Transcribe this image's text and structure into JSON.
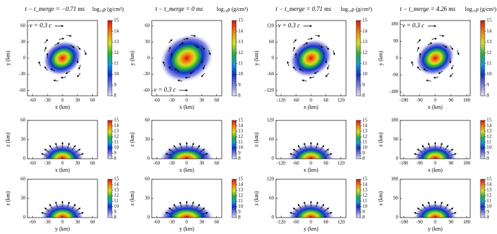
{
  "chart_data": [
    {
      "type": "heatmap",
      "title": "t − t_merge = −0.71 ms",
      "annotation": "v = 0.3 c",
      "xlabel": "x (km)",
      "ylabel": "y (km)",
      "xlim": [
        -70,
        70
      ],
      "ylim": [
        -70,
        70
      ],
      "xticks": [
        -60,
        -30,
        0,
        30,
        60
      ],
      "yticks": [
        -60,
        -30,
        0,
        30,
        60
      ],
      "colorbar": {
        "label": "log₁₀ρ (g/cm³)",
        "lim": [
          8,
          15
        ],
        "ticks": [
          8,
          9,
          10,
          11,
          12,
          13,
          14,
          15
        ]
      }
    },
    {
      "type": "heatmap",
      "title": "t − t_merge = 0 ms",
      "annotation": "v = 0.3 c",
      "xlabel": "x (km)",
      "ylabel": "y (km)",
      "xlim": [
        -70,
        70
      ],
      "ylim": [
        -70,
        70
      ],
      "xticks": [
        -60,
        -30,
        0,
        30,
        60
      ],
      "yticks": [
        -60,
        -30,
        0,
        30,
        60
      ],
      "colorbar": {
        "label": "log₁₀ρ (g/cm³)",
        "lim": [
          8,
          15
        ],
        "ticks": [
          8,
          9,
          10,
          11,
          12,
          13,
          14,
          15
        ]
      }
    },
    {
      "type": "heatmap",
      "title": "t − t_merge = 0.71 ms",
      "annotation": "v = 0.3 c",
      "xlabel": "x (km)",
      "ylabel": "y (km)",
      "xlim": [
        -140,
        140
      ],
      "ylim": [
        -140,
        140
      ],
      "xticks": [
        -120,
        -60,
        0,
        60,
        120
      ],
      "yticks": [
        -120,
        -60,
        0,
        60,
        120
      ],
      "colorbar": {
        "label": "log₁₀ρ (g/cm³)",
        "lim": [
          8,
          15
        ],
        "ticks": [
          8,
          9,
          10,
          11,
          12,
          13,
          14,
          15
        ]
      }
    },
    {
      "type": "heatmap",
      "title": "t − t_merge = 4.26 ms",
      "annotation": "v = 0.3 c",
      "xlabel": "x (km)",
      "ylabel": "y (km)",
      "xlim": [
        -200,
        200
      ],
      "ylim": [
        -200,
        200
      ],
      "xticks": [
        -180,
        -90,
        0,
        90,
        180
      ],
      "yticks": [
        -180,
        -90,
        0,
        90,
        180
      ],
      "colorbar": {
        "label": "log₁₀ρ (g/cm³)",
        "lim": [
          8,
          15
        ],
        "ticks": [
          8,
          9,
          10,
          11,
          12,
          13,
          14,
          15
        ]
      }
    },
    {
      "type": "heatmap",
      "xlabel": "x (km)",
      "ylabel": "z (km)",
      "xlim": [
        -70,
        70
      ],
      "ylim": [
        0,
        60
      ],
      "xticks": [
        -60,
        -30,
        0,
        30,
        60
      ],
      "yticks": [
        0,
        30,
        60
      ],
      "colorbar": {
        "lim": [
          8,
          15
        ],
        "ticks": [
          8,
          9,
          10,
          11,
          12,
          13,
          14,
          15
        ]
      }
    },
    {
      "type": "heatmap",
      "xlabel": "x (km)",
      "ylabel": "z (km)",
      "xlim": [
        -70,
        70
      ],
      "ylim": [
        0,
        60
      ],
      "xticks": [
        -60,
        -30,
        0,
        30,
        60
      ],
      "yticks": [
        0,
        30,
        60
      ],
      "colorbar": {
        "lim": [
          8,
          15
        ],
        "ticks": [
          8,
          9,
          10,
          11,
          12,
          13,
          14,
          15
        ]
      }
    },
    {
      "type": "heatmap",
      "xlabel": "x (km)",
      "ylabel": "z (km)",
      "xlim": [
        -140,
        140
      ],
      "ylim": [
        0,
        120
      ],
      "xticks": [
        -120,
        -60,
        0,
        60,
        120
      ],
      "yticks": [
        0,
        60,
        120
      ],
      "colorbar": {
        "lim": [
          8,
          15
        ],
        "ticks": [
          8,
          9,
          10,
          11,
          12,
          13,
          14,
          15
        ]
      }
    },
    {
      "type": "heatmap",
      "xlabel": "x (km)",
      "ylabel": "z (km)",
      "xlim": [
        -200,
        200
      ],
      "ylim": [
        0,
        180
      ],
      "xticks": [
        -180,
        -90,
        0,
        90,
        180
      ],
      "yticks": [
        0,
        90,
        180
      ],
      "colorbar": {
        "lim": [
          8,
          15
        ],
        "ticks": [
          8,
          9,
          10,
          11,
          12,
          13,
          14,
          15
        ]
      }
    },
    {
      "type": "heatmap",
      "xlabel": "y (km)",
      "ylabel": "z (km)",
      "xlim": [
        -70,
        70
      ],
      "ylim": [
        0,
        60
      ],
      "xticks": [
        -60,
        -30,
        0,
        30,
        60
      ],
      "yticks": [
        0,
        30,
        60
      ],
      "colorbar": {
        "lim": [
          8,
          15
        ],
        "ticks": [
          8,
          9,
          10,
          11,
          12,
          13,
          14,
          15
        ]
      }
    },
    {
      "type": "heatmap",
      "xlabel": "y (km)",
      "ylabel": "z (km)",
      "xlim": [
        -70,
        70
      ],
      "ylim": [
        0,
        60
      ],
      "xticks": [
        -60,
        -30,
        0,
        30,
        60
      ],
      "yticks": [
        0,
        30,
        60
      ],
      "colorbar": {
        "lim": [
          8,
          15
        ],
        "ticks": [
          8,
          9,
          10,
          11,
          12,
          13,
          14,
          15
        ]
      }
    },
    {
      "type": "heatmap",
      "xlabel": "y (km)",
      "ylabel": "z (km)",
      "xlim": [
        -140,
        140
      ],
      "ylim": [
        0,
        120
      ],
      "xticks": [
        -120,
        -60,
        0,
        60,
        120
      ],
      "yticks": [
        0,
        60,
        120
      ],
      "colorbar": {
        "lim": [
          8,
          15
        ],
        "ticks": [
          8,
          9,
          10,
          11,
          12,
          13,
          14,
          15
        ]
      }
    },
    {
      "type": "heatmap",
      "xlabel": "y (km)",
      "ylabel": "z (km)",
      "xlim": [
        -200,
        200
      ],
      "ylim": [
        0,
        180
      ],
      "xticks": [
        -180,
        -90,
        0,
        90,
        180
      ],
      "yticks": [
        0,
        90,
        180
      ],
      "colorbar": {
        "lim": [
          8,
          15
        ],
        "ticks": [
          8,
          9,
          10,
          11,
          12,
          13,
          14,
          15
        ]
      }
    }
  ]
}
